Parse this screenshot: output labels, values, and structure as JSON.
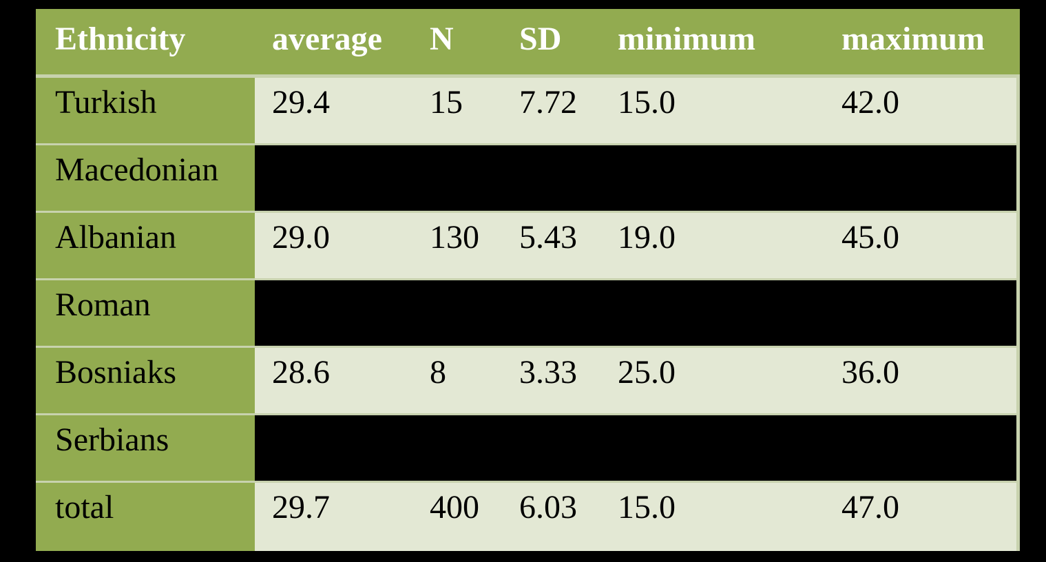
{
  "table": {
    "header": [
      "Ethnicity",
      "average",
      "N",
      "SD",
      "minimum",
      "maximum"
    ],
    "rows": [
      [
        "Turkish",
        "29.4",
        "15",
        "7.72",
        "15.0",
        "42.0"
      ],
      [
        "Macedonian"
      ],
      [
        "Albanian",
        "29.0",
        "130",
        "5.43",
        "19.0",
        "45.0"
      ],
      [
        "Roman"
      ],
      [
        "Bosniaks",
        "28.6",
        "8",
        "3.33",
        "25.0",
        "36.0"
      ],
      [
        "Serbians"
      ],
      [
        "total",
        "29.7",
        "400",
        "6.03",
        "15.0",
        "47.0"
      ]
    ]
  }
}
